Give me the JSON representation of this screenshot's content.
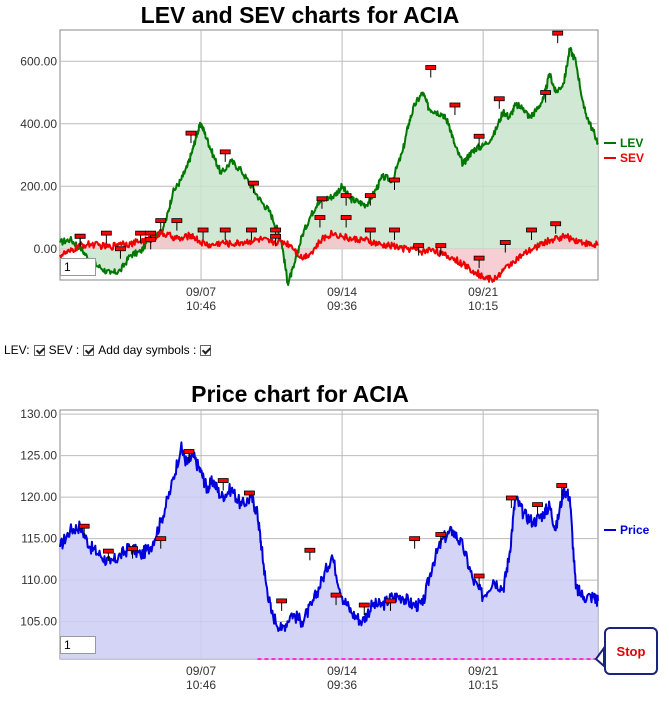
{
  "chart_data": [
    {
      "type": "line",
      "title": "LEV and SEV charts for ACIA",
      "ylim": [
        -100,
        700
      ],
      "yticks": [
        "0.00",
        "200.00",
        "400.00",
        "600.00"
      ],
      "ytick_values": [
        0,
        200,
        400,
        600
      ],
      "xticks": [
        {
          "date": "09/07",
          "time": "10:46",
          "x": 7
        },
        {
          "date": "09/14",
          "time": "09:36",
          "x": 14
        },
        {
          "date": "09/21",
          "time": "10:15",
          "x": 21
        }
      ],
      "xlim": [
        0,
        26.7
      ],
      "grid": true,
      "legend_placement": "right",
      "series": [
        {
          "name": "LEV",
          "color": "#007700",
          "fill": "#c8e4cc",
          "x": [
            0,
            0.5,
            1,
            1.5,
            2,
            2.5,
            3,
            3.5,
            4,
            4.5,
            5,
            5.3,
            5.6,
            6,
            6.3,
            6.6,
            6.8,
            7,
            7.3,
            7.6,
            8,
            8.5,
            9,
            9.5,
            10,
            10.4,
            10.8,
            11,
            11.3,
            11.6,
            12,
            12.4,
            12.8,
            13.2,
            13.6,
            14,
            14.4,
            14.8,
            15.2,
            15.6,
            16,
            16.5,
            17,
            17.3,
            17.6,
            18,
            18.3,
            18.6,
            19,
            19.3,
            19.6,
            20,
            20.3,
            20.6,
            21,
            21.5,
            22,
            22.3,
            22.6,
            23,
            23.3,
            23.6,
            24,
            24.3,
            24.6,
            25,
            25.3,
            25.6,
            26,
            26.3,
            26.7
          ],
          "y": [
            20,
            30,
            5,
            -40,
            -60,
            -80,
            -70,
            -20,
            -10,
            40,
            50,
            100,
            180,
            220,
            260,
            320,
            370,
            400,
            350,
            300,
            240,
            280,
            250,
            200,
            150,
            120,
            60,
            20,
            -110,
            -60,
            40,
            100,
            150,
            160,
            170,
            200,
            160,
            150,
            140,
            180,
            230,
            220,
            310,
            400,
            460,
            500,
            450,
            440,
            430,
            400,
            330,
            270,
            300,
            320,
            330,
            360,
            440,
            420,
            460,
            450,
            420,
            440,
            480,
            560,
            500,
            530,
            640,
            600,
            450,
            400,
            340
          ]
        },
        {
          "name": "SEV",
          "color": "#ee0000",
          "fill": "#f5c6cc",
          "x": [
            0,
            0.5,
            1,
            1.5,
            2,
            2.5,
            3,
            3.5,
            4,
            4.5,
            5,
            5.5,
            6,
            6.5,
            7,
            7.5,
            8,
            8.5,
            9,
            9.5,
            10,
            10.5,
            11,
            11.5,
            12,
            12.5,
            13,
            13.5,
            14,
            14.5,
            15,
            15.5,
            16,
            16.5,
            17,
            17.5,
            18,
            18.5,
            19,
            19.5,
            20,
            20.5,
            21,
            21.5,
            22,
            22.5,
            23,
            23.5,
            24,
            24.5,
            25,
            25.5,
            26,
            26.5,
            26.7
          ],
          "y": [
            -20,
            -10,
            10,
            15,
            10,
            5,
            20,
            15,
            25,
            30,
            50,
            40,
            30,
            45,
            20,
            10,
            20,
            15,
            20,
            25,
            30,
            20,
            25,
            10,
            -30,
            -10,
            30,
            50,
            40,
            30,
            30,
            20,
            10,
            10,
            0,
            0,
            -10,
            0,
            -20,
            -30,
            -50,
            -70,
            -90,
            -100,
            -70,
            -40,
            -20,
            0,
            20,
            30,
            40,
            30,
            20,
            10,
            15
          ]
        }
      ],
      "markers": {
        "LEV": [
          [
            1,
            40
          ],
          [
            4.5,
            50
          ],
          [
            5,
            90
          ],
          [
            6.5,
            370
          ],
          [
            8.2,
            310
          ],
          [
            9.6,
            210
          ],
          [
            10.7,
            60
          ],
          [
            13,
            160
          ],
          [
            14.2,
            170
          ],
          [
            15.4,
            170
          ],
          [
            16.6,
            220
          ],
          [
            18.4,
            580
          ],
          [
            19.6,
            460
          ],
          [
            20.8,
            360
          ],
          [
            21.8,
            480
          ],
          [
            24.1,
            500
          ],
          [
            24.7,
            690
          ]
        ],
        "SEV": [
          [
            1,
            40
          ],
          [
            2.3,
            50
          ],
          [
            3,
            0
          ],
          [
            4,
            50
          ],
          [
            4.5,
            30
          ],
          [
            5.8,
            90
          ],
          [
            7.1,
            60
          ],
          [
            8.2,
            60
          ],
          [
            9.5,
            60
          ],
          [
            10.7,
            40
          ],
          [
            12.9,
            100
          ],
          [
            14.2,
            100
          ],
          [
            15.4,
            60
          ],
          [
            16.6,
            60
          ],
          [
            17.8,
            10
          ],
          [
            18.9,
            10
          ],
          [
            20.8,
            -30
          ],
          [
            22.1,
            20
          ],
          [
            23.4,
            60
          ],
          [
            24.6,
            80
          ]
        ]
      }
    },
    {
      "type": "area",
      "title": "Price chart for ACIA",
      "ylim": [
        100.5,
        130.5
      ],
      "yticks": [
        "105.00",
        "110.00",
        "115.00",
        "120.00",
        "125.00",
        "130.00"
      ],
      "ytick_values": [
        105,
        110,
        115,
        120,
        125,
        130
      ],
      "xticks": [
        {
          "date": "09/07",
          "time": "10:46",
          "x": 7
        },
        {
          "date": "09/14",
          "time": "09:36",
          "x": 14
        },
        {
          "date": "09/21",
          "time": "10:15",
          "x": 21
        }
      ],
      "xlim": [
        0,
        26.7
      ],
      "grid": true,
      "legend_placement": "right",
      "series": [
        {
          "name": "Price",
          "color": "#0000dd",
          "fill": "#ccccf5",
          "x": [
            0,
            0.5,
            1,
            1.5,
            2,
            2.5,
            3,
            3.5,
            4,
            4.5,
            5,
            5.5,
            6,
            6.3,
            6.6,
            7,
            7.3,
            7.6,
            8,
            8.5,
            9,
            9.5,
            9.8,
            10,
            10.2,
            10.5,
            11,
            11.5,
            12,
            12.5,
            13,
            13.5,
            14,
            14.5,
            15,
            15.5,
            16,
            16.5,
            17,
            17.5,
            18,
            18.5,
            19,
            19.5,
            20,
            20.5,
            21,
            21.5,
            22,
            22.3,
            22.6,
            23,
            23.5,
            24,
            24.3,
            24.6,
            25,
            25.3,
            25.6,
            26,
            26.5,
            26.7
          ],
          "y": [
            114,
            116,
            116.5,
            114,
            113,
            112,
            113,
            114,
            113,
            114,
            117,
            121,
            126,
            124,
            125,
            123,
            121,
            122,
            120,
            121,
            119,
            120,
            118,
            114,
            110,
            106,
            104,
            106,
            105,
            107,
            110,
            113,
            108,
            106,
            105,
            107,
            107,
            108,
            108,
            107,
            107,
            112,
            115,
            116,
            114,
            110,
            108,
            110,
            109,
            113,
            120,
            118,
            117,
            118,
            119,
            116,
            121,
            120,
            109,
            108,
            108,
            107.5
          ]
        }
      ],
      "markers": {
        "Price": [
          [
            1.2,
            116.5
          ],
          [
            2.4,
            113.5
          ],
          [
            3.6,
            113.8
          ],
          [
            5,
            115
          ],
          [
            6.4,
            125.5
          ],
          [
            8.1,
            122
          ],
          [
            9.4,
            120.5
          ],
          [
            11,
            107.5
          ],
          [
            12.4,
            113.6
          ],
          [
            13.7,
            108.2
          ],
          [
            15.1,
            107
          ],
          [
            16.4,
            107.5
          ],
          [
            17.6,
            115
          ],
          [
            18.9,
            115.5
          ],
          [
            20.8,
            110.5
          ],
          [
            22.4,
            119.9
          ],
          [
            23.7,
            119.1
          ],
          [
            24.9,
            121.4
          ]
        ]
      },
      "stop": {
        "label": "Stop",
        "value": 100.5,
        "x_start": 9.8,
        "color": "#ff33cc"
      }
    }
  ],
  "controls": {
    "lev_label": "LEV:",
    "sev_label": "SEV :",
    "day_symbols_label": "Add day symbols :"
  },
  "inputs": {
    "lev_period": "1",
    "price_period": "1"
  }
}
